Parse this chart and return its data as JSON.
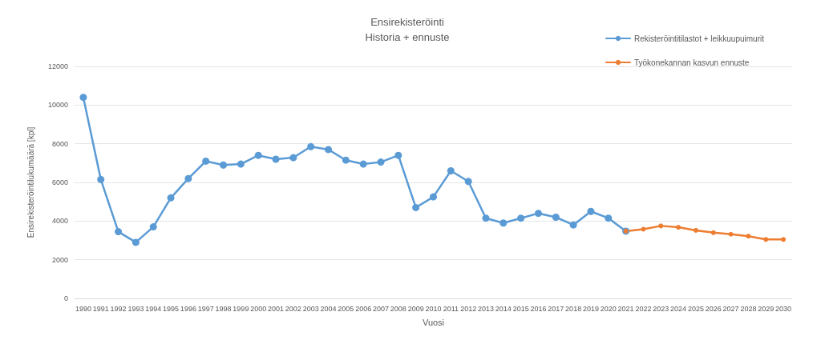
{
  "chart_data": {
    "type": "line",
    "title": "Ensirekisteröinti",
    "subtitle": "Historia + ennuste",
    "xlabel": "Vuosi",
    "ylabel": "Ensirekisteröintilukumäärä [kpl]",
    "categories": [
      "1990",
      "1991",
      "1992",
      "1993",
      "1994",
      "1995",
      "1996",
      "1997",
      "1998",
      "1999",
      "2000",
      "2001",
      "2002",
      "2003",
      "2004",
      "2005",
      "2006",
      "2007",
      "2008",
      "2009",
      "2010",
      "2011",
      "2012",
      "2013",
      "2014",
      "2015",
      "2016",
      "2017",
      "2018",
      "2019",
      "2020",
      "2021",
      "2022",
      "2023",
      "2024",
      "2025",
      "2026",
      "2027",
      "2028",
      "2029",
      "2030"
    ],
    "series": [
      {
        "name": "Rekisteröintitilastot + leikkuupuimurit",
        "color": "#5b9bd5",
        "values": [
          10400,
          6150,
          3450,
          2900,
          3700,
          5200,
          6200,
          7100,
          6900,
          6950,
          7400,
          7200,
          7280,
          7850,
          7700,
          7150,
          6950,
          7050,
          7400,
          4700,
          5250,
          6600,
          6050,
          4150,
          3900,
          4150,
          4400,
          4200,
          3800,
          4500,
          4150,
          3480,
          null,
          null,
          null,
          null,
          null,
          null,
          null,
          null,
          null
        ]
      },
      {
        "name": "Työkonekannan kasvun ennuste",
        "color": "#ed7d31",
        "values": [
          null,
          null,
          null,
          null,
          null,
          null,
          null,
          null,
          null,
          null,
          null,
          null,
          null,
          null,
          null,
          null,
          null,
          null,
          null,
          null,
          null,
          null,
          null,
          null,
          null,
          null,
          null,
          null,
          null,
          null,
          null,
          3480,
          3580,
          3750,
          3680,
          3520,
          3400,
          3320,
          3220,
          3050,
          3050
        ]
      }
    ],
    "ylim": [
      0,
      12000
    ],
    "yticks": [
      0,
      2000,
      4000,
      6000,
      8000,
      10000,
      12000
    ],
    "grid": "y",
    "legend": "top right",
    "marker": "circle",
    "line_style": "solid"
  }
}
